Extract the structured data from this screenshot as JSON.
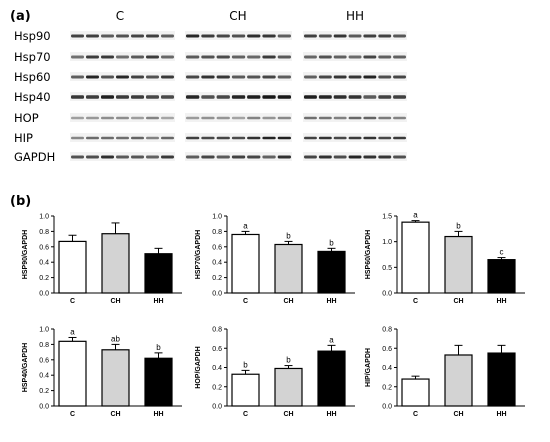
{
  "panel_a": {
    "label": "(a)",
    "groups": [
      "C",
      "CH",
      "HH"
    ],
    "rows": [
      "Hsp90",
      "Hsp70",
      "Hsp60",
      "Hsp40",
      "HOP",
      "HIP",
      "GAPDH"
    ]
  },
  "panel_b": {
    "label": "(b)"
  },
  "chart_data": [
    {
      "type": "bar",
      "ylabel": "HSP90/GAPDH",
      "categories": [
        "C",
        "CH",
        "HH"
      ],
      "values": [
        0.67,
        0.77,
        0.51
      ],
      "errors": [
        0.08,
        0.14,
        0.07
      ],
      "letters": [
        "",
        "",
        ""
      ],
      "ylim": [
        0,
        1.0
      ],
      "yticks": [
        "0.0",
        "0.2",
        "0.4",
        "0.6",
        "0.8",
        "1.0"
      ],
      "colors": [
        "#ffffff",
        "#d3d3d3",
        "#000000"
      ]
    },
    {
      "type": "bar",
      "ylabel": "HSP70/GAPDH",
      "categories": [
        "C",
        "CH",
        "HH"
      ],
      "values": [
        0.76,
        0.63,
        0.54
      ],
      "errors": [
        0.04,
        0.04,
        0.04
      ],
      "letters": [
        "a",
        "b",
        "b"
      ],
      "ylim": [
        0,
        1.0
      ],
      "yticks": [
        "0.0",
        "0.2",
        "0.4",
        "0.6",
        "0.8",
        "1.0"
      ],
      "colors": [
        "#ffffff",
        "#d3d3d3",
        "#000000"
      ]
    },
    {
      "type": "bar",
      "ylabel": "HSP60/GAPDH",
      "categories": [
        "C",
        "CH",
        "HH"
      ],
      "values": [
        1.38,
        1.1,
        0.65
      ],
      "errors": [
        0.03,
        0.1,
        0.04
      ],
      "letters": [
        "a",
        "b",
        "c"
      ],
      "ylim": [
        0,
        1.5
      ],
      "yticks": [
        "0.0",
        "0.5",
        "1.0",
        "1.5"
      ],
      "colors": [
        "#ffffff",
        "#d3d3d3",
        "#000000"
      ]
    },
    {
      "type": "bar",
      "ylabel": "HSP40/GAPDH",
      "categories": [
        "C",
        "CH",
        "HH"
      ],
      "values": [
        0.84,
        0.73,
        0.62
      ],
      "errors": [
        0.05,
        0.07,
        0.07
      ],
      "letters": [
        "a",
        "ab",
        "b"
      ],
      "ylim": [
        0,
        1.0
      ],
      "yticks": [
        "0.0",
        "0.2",
        "0.4",
        "0.6",
        "0.8",
        "1.0"
      ],
      "colors": [
        "#ffffff",
        "#d3d3d3",
        "#000000"
      ]
    },
    {
      "type": "bar",
      "ylabel": "HOP/GAPDH",
      "categories": [
        "C",
        "CH",
        "HH"
      ],
      "values": [
        0.33,
        0.39,
        0.57
      ],
      "errors": [
        0.04,
        0.03,
        0.06
      ],
      "letters": [
        "b",
        "b",
        "a"
      ],
      "ylim": [
        0,
        0.8
      ],
      "yticks": [
        "0.0",
        "0.2",
        "0.4",
        "0.6",
        "0.8"
      ],
      "colors": [
        "#ffffff",
        "#d3d3d3",
        "#000000"
      ]
    },
    {
      "type": "bar",
      "ylabel": "HIP/GAPDH",
      "categories": [
        "C",
        "CH",
        "HH"
      ],
      "values": [
        0.28,
        0.53,
        0.55
      ],
      "errors": [
        0.03,
        0.1,
        0.08
      ],
      "letters": [
        "",
        "",
        ""
      ],
      "ylim": [
        0,
        0.8
      ],
      "yticks": [
        "0.0",
        "0.2",
        "0.4",
        "0.6",
        "0.8"
      ],
      "colors": [
        "#ffffff",
        "#d3d3d3",
        "#000000"
      ]
    }
  ]
}
